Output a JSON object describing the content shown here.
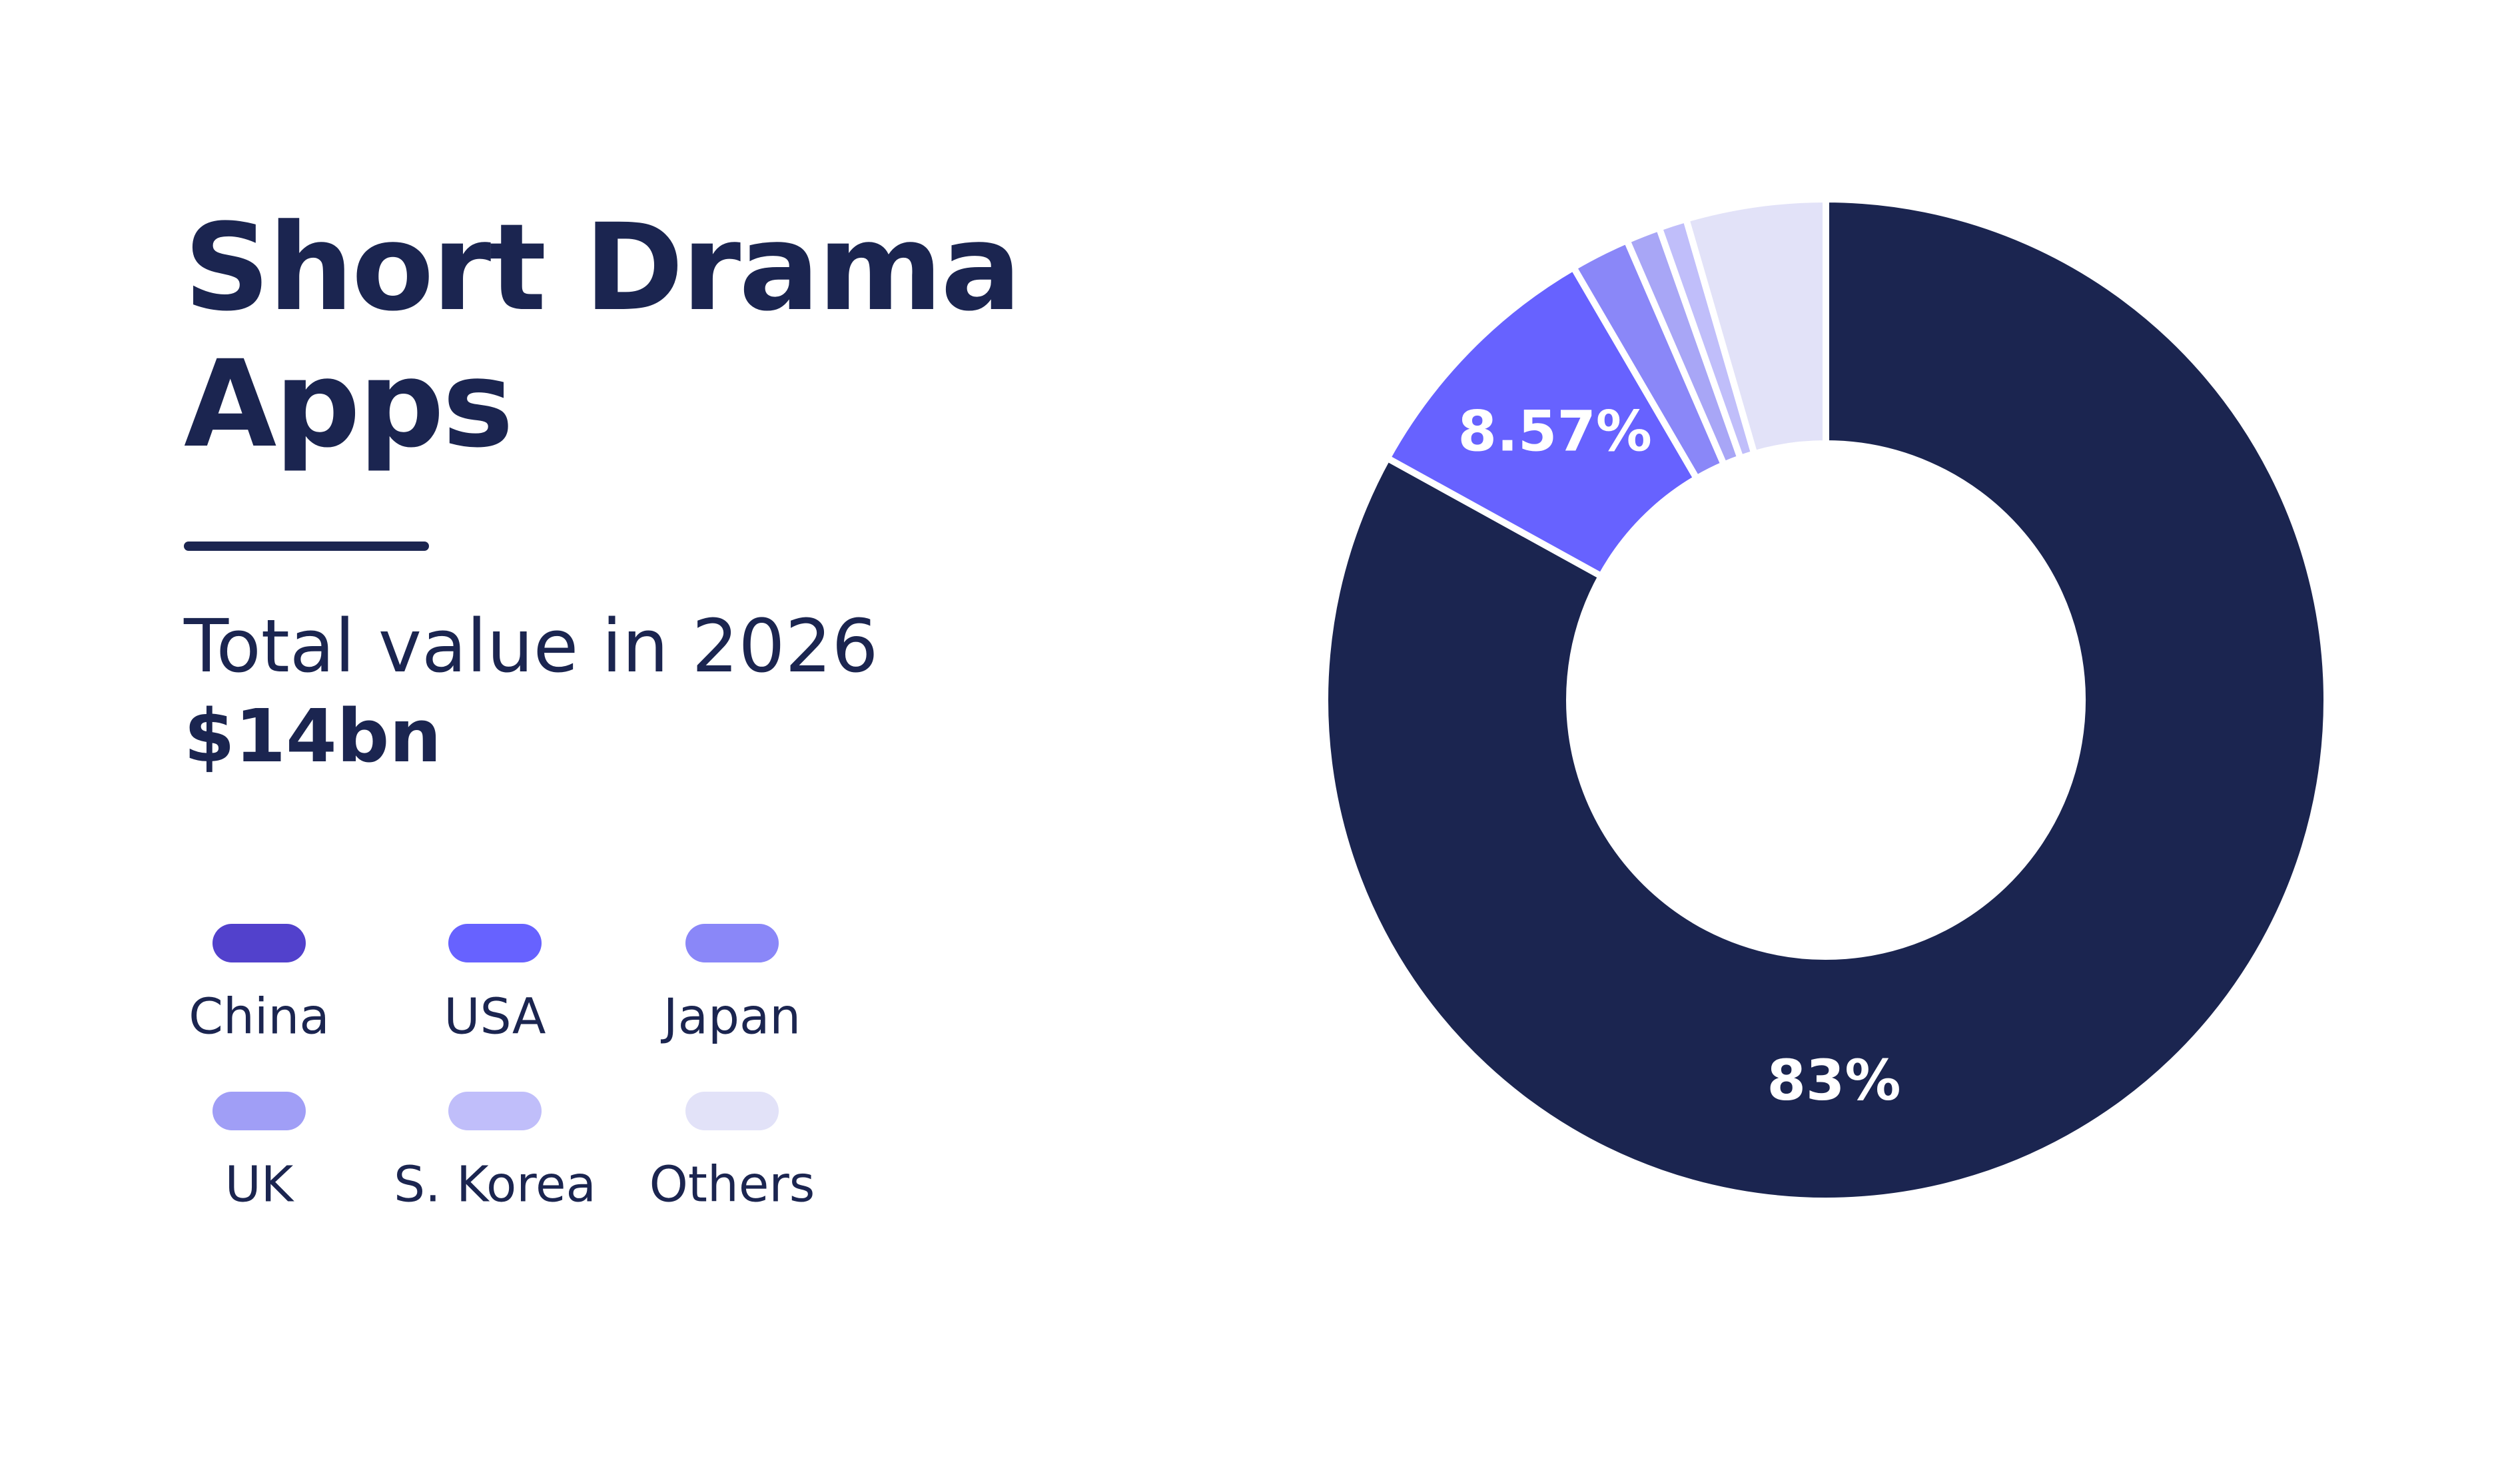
{
  "chart_data": {
    "type": "donut",
    "title": "Short Drama Apps",
    "subtitle": "Total value in 2026",
    "annotation": "$14bn",
    "categories": [
      "China",
      "USA",
      "Japan",
      "UK",
      "S. Korea",
      "Others"
    ],
    "values": [
      83,
      8.57,
      1.9,
      1.1,
      0.9,
      4.5
    ],
    "value_labels": [
      "83%",
      "8.57%",
      null,
      null,
      null,
      null
    ],
    "colors": [
      "#1b2550",
      "#6762ff",
      "#8a87f8",
      "#a8a6f6",
      "#c0befa",
      "#e2e2f8"
    ],
    "legend_colors": [
      "#5241cc",
      "#6762ff",
      "#8a87f8",
      "#a09ef6",
      "#c0befa",
      "#e2e2f8"
    ]
  }
}
